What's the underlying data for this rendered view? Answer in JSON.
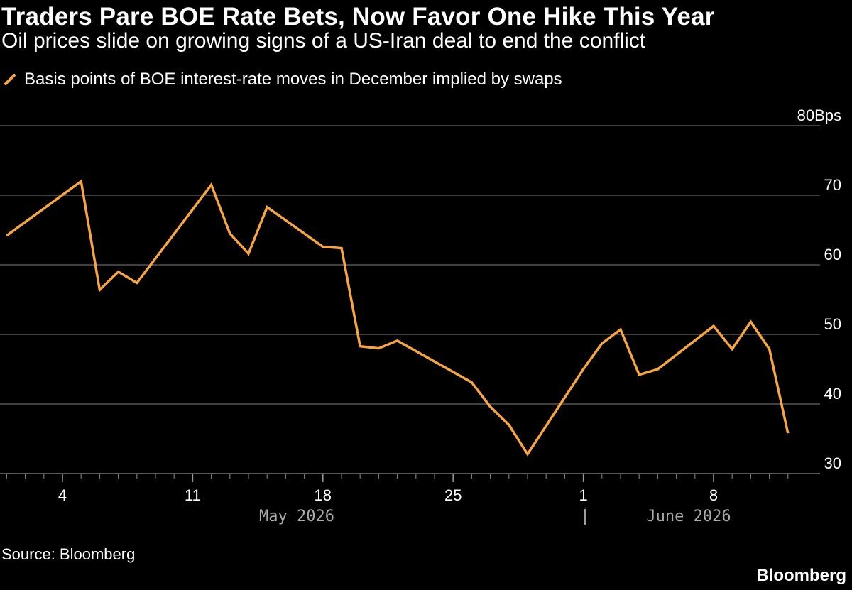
{
  "header": {
    "title": "Traders Pare BOE Rate Bets, Now Favor One Hike This Year",
    "subtitle": "Oil prices slide on growing signs of a US-Iran deal to end the conflict"
  },
  "footer": {
    "source": "Source: Bloomberg",
    "brand": "Bloomberg"
  },
  "colors": {
    "background": "#000000",
    "series": "#F7A541",
    "grid": "#555555",
    "text": "#ffffff",
    "month_label": "#aaaaaa"
  },
  "chart_data": {
    "type": "line",
    "legend_position": "top-left",
    "grid": true,
    "ylim": [
      30,
      80
    ],
    "yticks": [
      {
        "value": 80,
        "label": "80Bps"
      },
      {
        "value": 70,
        "label": "70"
      },
      {
        "value": 60,
        "label": "60"
      },
      {
        "value": 50,
        "label": "50"
      },
      {
        "value": 40,
        "label": "40"
      },
      {
        "value": 30,
        "label": "30"
      }
    ],
    "xlim": [
      "2026-04-30",
      "2026-06-12"
    ],
    "xticks": [
      {
        "date": "2026-05-04",
        "label": "4"
      },
      {
        "date": "2026-05-11",
        "label": "11"
      },
      {
        "date": "2026-05-18",
        "label": "18"
      },
      {
        "date": "2026-05-25",
        "label": "25"
      },
      {
        "date": "2026-06-01",
        "label": "1"
      },
      {
        "date": "2026-06-08",
        "label": "8"
      }
    ],
    "month_labels": [
      {
        "date": "2026-05-24",
        "label": "May 2026"
      },
      {
        "date": "2026-06-01",
        "label": "|"
      },
      {
        "date": "2026-06-07",
        "label": "June 2026"
      }
    ],
    "series": [
      {
        "name": "Basis points of BOE interest-rate moves in December implied by swaps",
        "points": [
          {
            "x": "2026-05-01",
            "y": 64.2
          },
          {
            "x": "2026-05-05",
            "y": 72.0
          },
          {
            "x": "2026-05-06",
            "y": 56.4
          },
          {
            "x": "2026-05-07",
            "y": 59.0
          },
          {
            "x": "2026-05-08",
            "y": 57.4
          },
          {
            "x": "2026-05-12",
            "y": 71.5
          },
          {
            "x": "2026-05-13",
            "y": 64.5
          },
          {
            "x": "2026-05-14",
            "y": 61.6
          },
          {
            "x": "2026-05-15",
            "y": 68.3
          },
          {
            "x": "2026-05-18",
            "y": 62.6
          },
          {
            "x": "2026-05-19",
            "y": 62.4
          },
          {
            "x": "2026-05-20",
            "y": 48.3
          },
          {
            "x": "2026-05-21",
            "y": 48.0
          },
          {
            "x": "2026-05-22",
            "y": 49.1
          },
          {
            "x": "2026-05-26",
            "y": 43.1
          },
          {
            "x": "2026-05-27",
            "y": 39.6
          },
          {
            "x": "2026-05-28",
            "y": 37.0
          },
          {
            "x": "2026-05-29",
            "y": 32.8
          },
          {
            "x": "2026-06-01",
            "y": 45.0
          },
          {
            "x": "2026-06-02",
            "y": 48.7
          },
          {
            "x": "2026-06-03",
            "y": 50.7
          },
          {
            "x": "2026-06-04",
            "y": 44.2
          },
          {
            "x": "2026-06-05",
            "y": 45.0
          },
          {
            "x": "2026-06-08",
            "y": 51.2
          },
          {
            "x": "2026-06-09",
            "y": 47.9
          },
          {
            "x": "2026-06-10",
            "y": 51.8
          },
          {
            "x": "2026-06-11",
            "y": 47.9
          },
          {
            "x": "2026-06-12",
            "y": 35.8
          }
        ]
      }
    ]
  }
}
